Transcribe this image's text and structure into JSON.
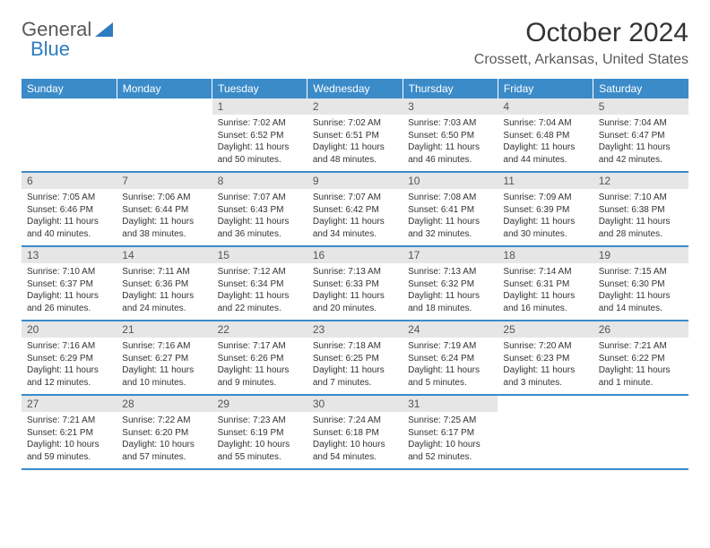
{
  "logo": {
    "text1": "General",
    "text2": "Blue"
  },
  "title": "October 2024",
  "location": "Crossett, Arkansas, United States",
  "colors": {
    "header_bg": "#3b8bc9",
    "header_fg": "#ffffff",
    "daynum_bg": "#e6e6e6",
    "border": "#3b8bc9",
    "logo_accent": "#2e7bbf"
  },
  "day_headers": [
    "Sunday",
    "Monday",
    "Tuesday",
    "Wednesday",
    "Thursday",
    "Friday",
    "Saturday"
  ],
  "weeks": [
    {
      "nums": [
        "",
        "",
        "1",
        "2",
        "3",
        "4",
        "5"
      ],
      "details": [
        {
          "sunrise": "",
          "sunset": "",
          "daylight": ""
        },
        {
          "sunrise": "",
          "sunset": "",
          "daylight": ""
        },
        {
          "sunrise": "Sunrise: 7:02 AM",
          "sunset": "Sunset: 6:52 PM",
          "daylight": "Daylight: 11 hours and 50 minutes."
        },
        {
          "sunrise": "Sunrise: 7:02 AM",
          "sunset": "Sunset: 6:51 PM",
          "daylight": "Daylight: 11 hours and 48 minutes."
        },
        {
          "sunrise": "Sunrise: 7:03 AM",
          "sunset": "Sunset: 6:50 PM",
          "daylight": "Daylight: 11 hours and 46 minutes."
        },
        {
          "sunrise": "Sunrise: 7:04 AM",
          "sunset": "Sunset: 6:48 PM",
          "daylight": "Daylight: 11 hours and 44 minutes."
        },
        {
          "sunrise": "Sunrise: 7:04 AM",
          "sunset": "Sunset: 6:47 PM",
          "daylight": "Daylight: 11 hours and 42 minutes."
        }
      ]
    },
    {
      "nums": [
        "6",
        "7",
        "8",
        "9",
        "10",
        "11",
        "12"
      ],
      "details": [
        {
          "sunrise": "Sunrise: 7:05 AM",
          "sunset": "Sunset: 6:46 PM",
          "daylight": "Daylight: 11 hours and 40 minutes."
        },
        {
          "sunrise": "Sunrise: 7:06 AM",
          "sunset": "Sunset: 6:44 PM",
          "daylight": "Daylight: 11 hours and 38 minutes."
        },
        {
          "sunrise": "Sunrise: 7:07 AM",
          "sunset": "Sunset: 6:43 PM",
          "daylight": "Daylight: 11 hours and 36 minutes."
        },
        {
          "sunrise": "Sunrise: 7:07 AM",
          "sunset": "Sunset: 6:42 PM",
          "daylight": "Daylight: 11 hours and 34 minutes."
        },
        {
          "sunrise": "Sunrise: 7:08 AM",
          "sunset": "Sunset: 6:41 PM",
          "daylight": "Daylight: 11 hours and 32 minutes."
        },
        {
          "sunrise": "Sunrise: 7:09 AM",
          "sunset": "Sunset: 6:39 PM",
          "daylight": "Daylight: 11 hours and 30 minutes."
        },
        {
          "sunrise": "Sunrise: 7:10 AM",
          "sunset": "Sunset: 6:38 PM",
          "daylight": "Daylight: 11 hours and 28 minutes."
        }
      ]
    },
    {
      "nums": [
        "13",
        "14",
        "15",
        "16",
        "17",
        "18",
        "19"
      ],
      "details": [
        {
          "sunrise": "Sunrise: 7:10 AM",
          "sunset": "Sunset: 6:37 PM",
          "daylight": "Daylight: 11 hours and 26 minutes."
        },
        {
          "sunrise": "Sunrise: 7:11 AM",
          "sunset": "Sunset: 6:36 PM",
          "daylight": "Daylight: 11 hours and 24 minutes."
        },
        {
          "sunrise": "Sunrise: 7:12 AM",
          "sunset": "Sunset: 6:34 PM",
          "daylight": "Daylight: 11 hours and 22 minutes."
        },
        {
          "sunrise": "Sunrise: 7:13 AM",
          "sunset": "Sunset: 6:33 PM",
          "daylight": "Daylight: 11 hours and 20 minutes."
        },
        {
          "sunrise": "Sunrise: 7:13 AM",
          "sunset": "Sunset: 6:32 PM",
          "daylight": "Daylight: 11 hours and 18 minutes."
        },
        {
          "sunrise": "Sunrise: 7:14 AM",
          "sunset": "Sunset: 6:31 PM",
          "daylight": "Daylight: 11 hours and 16 minutes."
        },
        {
          "sunrise": "Sunrise: 7:15 AM",
          "sunset": "Sunset: 6:30 PM",
          "daylight": "Daylight: 11 hours and 14 minutes."
        }
      ]
    },
    {
      "nums": [
        "20",
        "21",
        "22",
        "23",
        "24",
        "25",
        "26"
      ],
      "details": [
        {
          "sunrise": "Sunrise: 7:16 AM",
          "sunset": "Sunset: 6:29 PM",
          "daylight": "Daylight: 11 hours and 12 minutes."
        },
        {
          "sunrise": "Sunrise: 7:16 AM",
          "sunset": "Sunset: 6:27 PM",
          "daylight": "Daylight: 11 hours and 10 minutes."
        },
        {
          "sunrise": "Sunrise: 7:17 AM",
          "sunset": "Sunset: 6:26 PM",
          "daylight": "Daylight: 11 hours and 9 minutes."
        },
        {
          "sunrise": "Sunrise: 7:18 AM",
          "sunset": "Sunset: 6:25 PM",
          "daylight": "Daylight: 11 hours and 7 minutes."
        },
        {
          "sunrise": "Sunrise: 7:19 AM",
          "sunset": "Sunset: 6:24 PM",
          "daylight": "Daylight: 11 hours and 5 minutes."
        },
        {
          "sunrise": "Sunrise: 7:20 AM",
          "sunset": "Sunset: 6:23 PM",
          "daylight": "Daylight: 11 hours and 3 minutes."
        },
        {
          "sunrise": "Sunrise: 7:21 AM",
          "sunset": "Sunset: 6:22 PM",
          "daylight": "Daylight: 11 hours and 1 minute."
        }
      ]
    },
    {
      "nums": [
        "27",
        "28",
        "29",
        "30",
        "31",
        "",
        ""
      ],
      "details": [
        {
          "sunrise": "Sunrise: 7:21 AM",
          "sunset": "Sunset: 6:21 PM",
          "daylight": "Daylight: 10 hours and 59 minutes."
        },
        {
          "sunrise": "Sunrise: 7:22 AM",
          "sunset": "Sunset: 6:20 PM",
          "daylight": "Daylight: 10 hours and 57 minutes."
        },
        {
          "sunrise": "Sunrise: 7:23 AM",
          "sunset": "Sunset: 6:19 PM",
          "daylight": "Daylight: 10 hours and 55 minutes."
        },
        {
          "sunrise": "Sunrise: 7:24 AM",
          "sunset": "Sunset: 6:18 PM",
          "daylight": "Daylight: 10 hours and 54 minutes."
        },
        {
          "sunrise": "Sunrise: 7:25 AM",
          "sunset": "Sunset: 6:17 PM",
          "daylight": "Daylight: 10 hours and 52 minutes."
        },
        {
          "sunrise": "",
          "sunset": "",
          "daylight": ""
        },
        {
          "sunrise": "",
          "sunset": "",
          "daylight": ""
        }
      ]
    }
  ]
}
